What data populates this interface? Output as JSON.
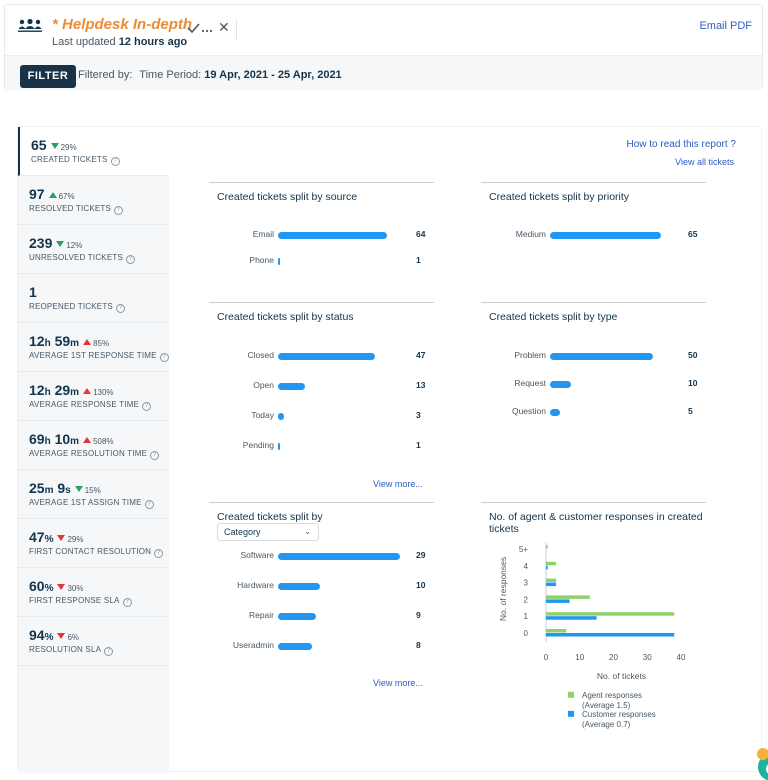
{
  "header": {
    "title_star": "*",
    "title": "Helpdesk In-depth",
    "last_updated_prefix": "Last updated",
    "last_updated_value": "12 hours ago",
    "email_pdf": "Email PDF"
  },
  "filter": {
    "button_label": "FILTER",
    "filtered_by": "Filtered by:",
    "period_label": "Time Period:",
    "period_value": "19 Apr, 2021 - 25 Apr, 2021"
  },
  "links": {
    "how_to": "How to read this report ?",
    "view_all": "View all tickets",
    "view_more": "View more..."
  },
  "metrics": [
    {
      "value": "65",
      "unit": "",
      "value2": "",
      "unit2": "",
      "delta": "29%",
      "direction": "down",
      "color": "#2aa15e",
      "label": "CREATED TICKETS"
    },
    {
      "value": "97",
      "unit": "",
      "value2": "",
      "unit2": "",
      "delta": "67%",
      "direction": "up",
      "color": "#2aa15e",
      "label": "RESOLVED TICKETS"
    },
    {
      "value": "239",
      "unit": "",
      "value2": "",
      "unit2": "",
      "delta": "12%",
      "direction": "down",
      "color": "#2aa15e",
      "label": "UNRESOLVED TICKETS"
    },
    {
      "value": "1",
      "unit": "",
      "value2": "",
      "unit2": "",
      "delta": "",
      "direction": "",
      "color": "",
      "label": "REOPENED TICKETS"
    },
    {
      "value": "12",
      "unit": "h",
      "value2": "59",
      "unit2": "m",
      "delta": "85%",
      "direction": "up",
      "color": "#e43538",
      "label": "AVERAGE 1ST RESPONSE TIME"
    },
    {
      "value": "12",
      "unit": "h",
      "value2": "29",
      "unit2": "m",
      "delta": "130%",
      "direction": "up",
      "color": "#e43538",
      "label": "AVERAGE RESPONSE TIME"
    },
    {
      "value": "69",
      "unit": "h",
      "value2": "10",
      "unit2": "m",
      "delta": "508%",
      "direction": "up",
      "color": "#e43538",
      "label": "AVERAGE RESOLUTION TIME"
    },
    {
      "value": "25",
      "unit": "m",
      "value2": "9",
      "unit2": "s",
      "delta": "15%",
      "direction": "down",
      "color": "#2aa15e",
      "label": "AVERAGE 1ST ASSIGN TIME"
    },
    {
      "value": "47",
      "unit": "%",
      "value2": "",
      "unit2": "",
      "delta": "29%",
      "direction": "down",
      "color": "#e43538",
      "label": "FIRST CONTACT RESOLUTION"
    },
    {
      "value": "60",
      "unit": "%",
      "value2": "",
      "unit2": "",
      "delta": "30%",
      "direction": "down",
      "color": "#e43538",
      "label": "FIRST RESPONSE SLA"
    },
    {
      "value": "94",
      "unit": "%",
      "value2": "",
      "unit2": "",
      "delta": "6%",
      "direction": "down",
      "color": "#e43538",
      "label": "RESOLUTION SLA"
    }
  ],
  "panels": {
    "source": {
      "title": "Created tickets split by source",
      "rows": [
        {
          "label": "Email",
          "value": 64
        },
        {
          "label": "Phone",
          "value": 1
        }
      ]
    },
    "priority": {
      "title": "Created tickets split by priority",
      "rows": [
        {
          "label": "Medium",
          "value": 65
        }
      ]
    },
    "status": {
      "title": "Created tickets split by status",
      "rows": [
        {
          "label": "Closed",
          "value": 47
        },
        {
          "label": "Open",
          "value": 13
        },
        {
          "label": "Today",
          "value": 3
        },
        {
          "label": "Pending",
          "value": 1
        }
      ]
    },
    "type": {
      "title": "Created tickets split by type",
      "rows": [
        {
          "label": "Problem",
          "value": 50
        },
        {
          "label": "Request",
          "value": 10
        },
        {
          "label": "Question",
          "value": 5
        }
      ]
    },
    "category": {
      "title": "Created tickets split by",
      "select_value": "Category",
      "rows": [
        {
          "label": "Software",
          "value": 29
        },
        {
          "label": "Hardware",
          "value": 10
        },
        {
          "label": "Repair",
          "value": 9
        },
        {
          "label": "Useradmin",
          "value": 8
        }
      ]
    },
    "responses": {
      "title": "No. of agent & customer responses in created tickets"
    }
  },
  "chart_data": {
    "type": "bar",
    "orientation": "horizontal",
    "title": "No. of agent & customer responses in created tickets",
    "categories": [
      "5+",
      "4",
      "3",
      "2",
      "1",
      "0"
    ],
    "series": [
      {
        "name": "Agent responses",
        "note": "(Average 1.5)",
        "color": "#8fd16b",
        "values": [
          0.5,
          3,
          3,
          13,
          38,
          6
        ]
      },
      {
        "name": "Customer responses",
        "note": "(Average 0.7)",
        "color": "#2196f3",
        "values": [
          0,
          0.5,
          3,
          7,
          15,
          38
        ]
      }
    ],
    "xlabel": "No. of tickets",
    "ylabel": "No. of responses",
    "xticks": [
      0,
      10,
      20,
      30,
      40
    ],
    "xlim": [
      0,
      40
    ],
    "grid": false,
    "legend_position": "bottom"
  }
}
